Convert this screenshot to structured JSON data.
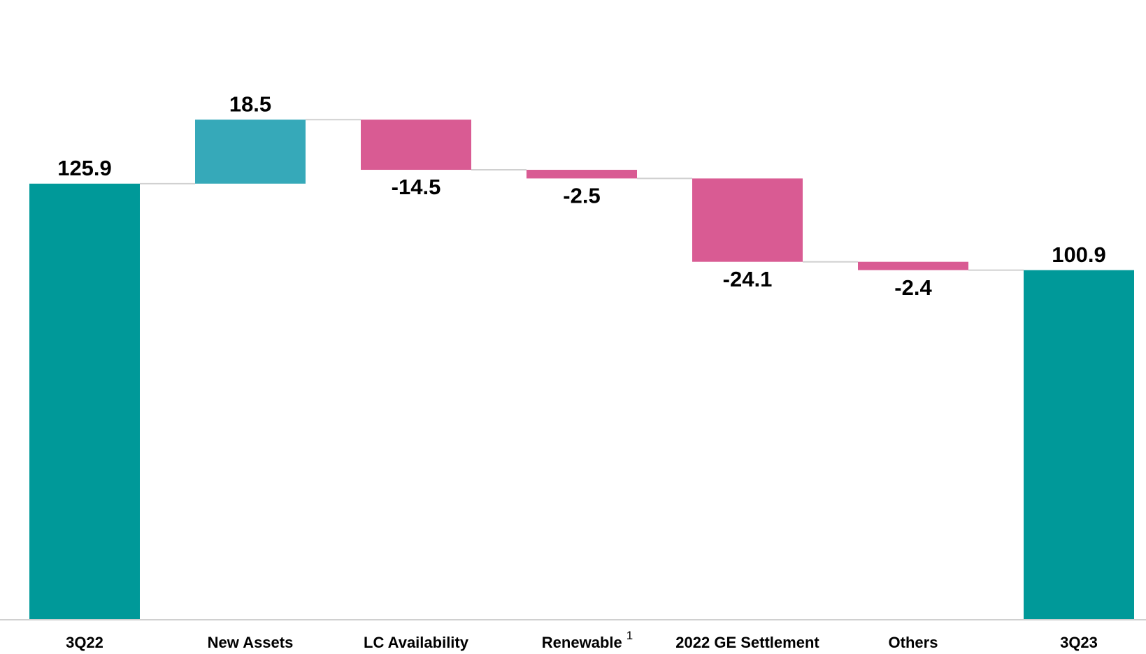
{
  "chart_data": {
    "type": "waterfall",
    "categories": [
      "3Q22",
      "New Assets",
      "LC Availability",
      "Renewable",
      "2022 GE Settlement",
      "Others",
      "3Q23"
    ],
    "superscripts": [
      null,
      null,
      null,
      "1",
      null,
      null,
      null
    ],
    "measures": [
      "total",
      "relative",
      "relative",
      "relative",
      "relative",
      "relative",
      "total"
    ],
    "values": [
      125.9,
      18.5,
      -14.5,
      -2.5,
      -24.1,
      -2.4,
      100.9
    ],
    "colors": {
      "total": "#009999",
      "increase": "#36a9b9",
      "decrease": "#d95b93"
    },
    "ylim": [
      0,
      179
    ]
  }
}
